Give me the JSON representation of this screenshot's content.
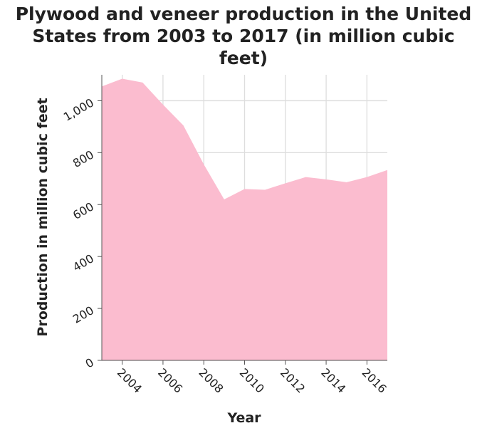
{
  "chart_data": {
    "type": "area",
    "title": [
      "Plywood and veneer production in the United",
      "States from 2003 to 2017 (in million cubic",
      "feet)"
    ],
    "xlabel": "Year",
    "ylabel": "Production in million cubic feet",
    "x": [
      2003,
      2004,
      2005,
      2006,
      2007,
      2008,
      2009,
      2010,
      2011,
      2012,
      2013,
      2014,
      2015,
      2016,
      2017
    ],
    "series": [
      {
        "values": [
          1055,
          1085,
          1070,
          985,
          905,
          755,
          620,
          660,
          657,
          682,
          706,
          697,
          686,
          706,
          733
        ]
      }
    ],
    "xlim": [
      2003,
      2017
    ],
    "ylim": [
      0,
      1100
    ],
    "xticks": [
      2004,
      2006,
      2008,
      2010,
      2012,
      2014,
      2016
    ],
    "xtick_labels": [
      "2004",
      "2006",
      "2008",
      "2010",
      "2012",
      "2014",
      "2016"
    ],
    "yticks": [
      0,
      200,
      400,
      600,
      800,
      1000
    ],
    "ytick_labels": [
      "0",
      "200",
      "400",
      "600",
      "800",
      "1,000"
    ],
    "grid": true,
    "colors": {
      "area": "#fbbccf",
      "grid": "#dddddd",
      "axis": "#555555",
      "text": "#222222"
    }
  }
}
